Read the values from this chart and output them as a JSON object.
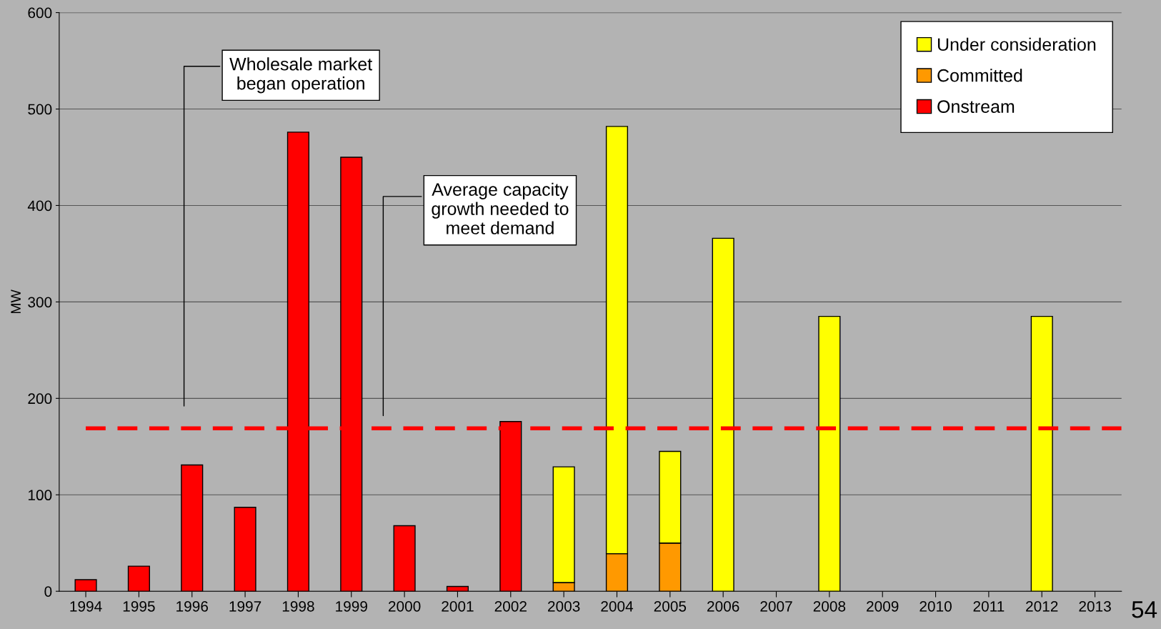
{
  "chart_data": {
    "type": "bar",
    "stacked": true,
    "ylabel": "MW",
    "categories": [
      "1994",
      "1995",
      "1996",
      "1997",
      "1998",
      "1999",
      "2000",
      "2001",
      "2002",
      "2003",
      "2004",
      "2005",
      "2006",
      "2007",
      "2008",
      "2009",
      "2010",
      "2011",
      "2012",
      "2013"
    ],
    "series": [
      {
        "name": "Onstream",
        "color": "#ff0000",
        "values": [
          12,
          26,
          131,
          87,
          476,
          450,
          68,
          5,
          176,
          null,
          null,
          null,
          null,
          null,
          null,
          null,
          null,
          null,
          null,
          null
        ]
      },
      {
        "name": "Committed",
        "color": "#ff9900",
        "values": [
          null,
          null,
          null,
          null,
          null,
          null,
          null,
          null,
          null,
          9,
          39,
          50,
          null,
          null,
          null,
          null,
          null,
          null,
          null,
          null
        ]
      },
      {
        "name": "Under consideration",
        "color": "#ffff00",
        "values": [
          null,
          null,
          null,
          null,
          null,
          null,
          null,
          null,
          null,
          120,
          443,
          95,
          366,
          null,
          285,
          null,
          null,
          null,
          285,
          null
        ]
      }
    ],
    "ylim": [
      0,
      600
    ],
    "yticks": [
      0,
      100,
      200,
      300,
      400,
      500,
      600
    ],
    "grid": "y",
    "legend": "top right",
    "ref_lines": [
      {
        "axis": "y",
        "value": 169,
        "color": "#ff0000",
        "line_style": "dashed"
      }
    ],
    "annotations": [
      "Wholesale market\nbegan operation",
      "Average capacity\ngrowth needed to\nmeet demand",
      "54"
    ]
  }
}
